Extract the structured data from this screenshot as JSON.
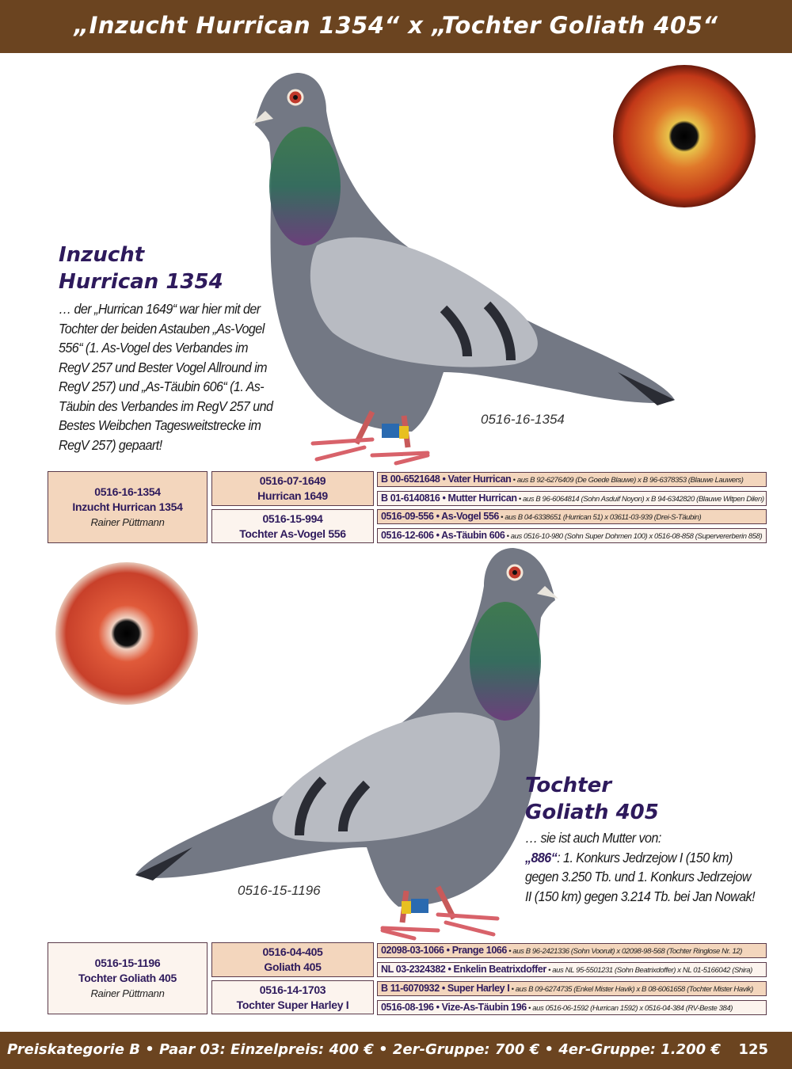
{
  "header": {
    "title": "„Inzucht Hurrican 1354“ x „Tochter Goliath 405“"
  },
  "colors": {
    "brand_brown": "#6b4420",
    "title_purple": "#2e1a5c",
    "box_peach": "#f3d6bd",
    "box_light": "#fcf4ee"
  },
  "pigeon1": {
    "title_line1": "Inzucht",
    "title_line2": "Hurrican 1354",
    "description": "… der „Hurrican 1649“ war hier mit der Tochter der beiden Astauben „As-Vogel 556“ (1. As-Vogel des Verbandes im RegV 257 und Bester Vogel Allround im RegV 257) und „As-Täubin 606“ (1. As-Täubin des Verbandes im RegV 257 und Bestes Weibchen Tagesweitstrecke im RegV 257) gepaart!",
    "ring_label": "0516-16-1354",
    "pedigree": {
      "main": {
        "ring": "0516-16-1354",
        "name": "Inzucht Hurrican 1354",
        "breeder": "Rainer Püttmann"
      },
      "father": {
        "ring": "0516-07-1649",
        "name": "Hurrican 1649"
      },
      "mother": {
        "ring": "0516-15-994",
        "name": "Tochter As-Vogel 556"
      },
      "grandparents": [
        {
          "head": "B 00-6521648 • Vater Hurrican",
          "detail": " • aus B 92-6276409 (De Goede Blauwe) x B 96-6378353 (Blauwe Lauwers)"
        },
        {
          "head": "B 01-6140816 • Mutter Hurrican",
          "detail": " • aus B 96-6064814 (Sohn Asduif Noyon) x B 94-6342820 (Blauwe Witpen Dilen)"
        },
        {
          "head": "0516-09-556 • As-Vogel 556",
          "detail": " • aus B 04-6338651 (Hurrican 51) x 03611-03-939 (Drei-S-Täubin)"
        },
        {
          "head": "0516-12-606 • As-Täubin 606",
          "detail": " • aus 0516-10-980 (Sohn Super Dohmen 100) x 0516-08-858 (Supervererberin 858)"
        }
      ]
    }
  },
  "pigeon2": {
    "title_line1": "Tochter",
    "title_line2": "Goliath 405",
    "desc_intro": "… sie ist auch Mutter von:",
    "desc_highlight": "„886“",
    "desc_rest": ": 1. Konkurs Jedrzejow I (150 km) gegen 3.250 Tb. und 1. Konkurs Jedrzejow II (150 km) gegen 3.214 Tb. bei Jan Nowak!",
    "ring_label": "0516-15-1196",
    "pedigree": {
      "main": {
        "ring": "0516-15-1196",
        "name": "Tochter Goliath 405",
        "breeder": "Rainer Püttmann"
      },
      "father": {
        "ring": "0516-04-405",
        "name": "Goliath 405"
      },
      "mother": {
        "ring": "0516-14-1703",
        "name": "Tochter Super Harley I"
      },
      "grandparents": [
        {
          "head": "02098-03-1066 • Prange 1066",
          "detail": " • aus B 96-2421336 (Sohn Vooruit) x 02098-98-568 (Tochter Ringlose Nr. 12)"
        },
        {
          "head": "NL 03-2324382 • Enkelin Beatrixdoffer",
          "detail": " • aus NL 95-5501231 (Sohn Beatrixdoffer) x NL 01-5166042 (Shira)"
        },
        {
          "head": "B 11-6070932 • Super Harley I",
          "detail": " • aus B 09-6274735 (Enkel Mister Havik) x B 08-6061658 (Tochter Mister Havik)"
        },
        {
          "head": "0516-08-196 • Vize-As-Täubin 196",
          "detail": " • aus 0516-06-1592 (Hurrican 1592) x 0516-04-384 (RV-Beste 384)"
        }
      ]
    }
  },
  "footer": {
    "text": "Preiskategorie B • Paar 03: Einzelpreis: 400 € • 2er-Gruppe: 700 € • 4er-Gruppe: 1.200 €",
    "page_number": "125"
  }
}
